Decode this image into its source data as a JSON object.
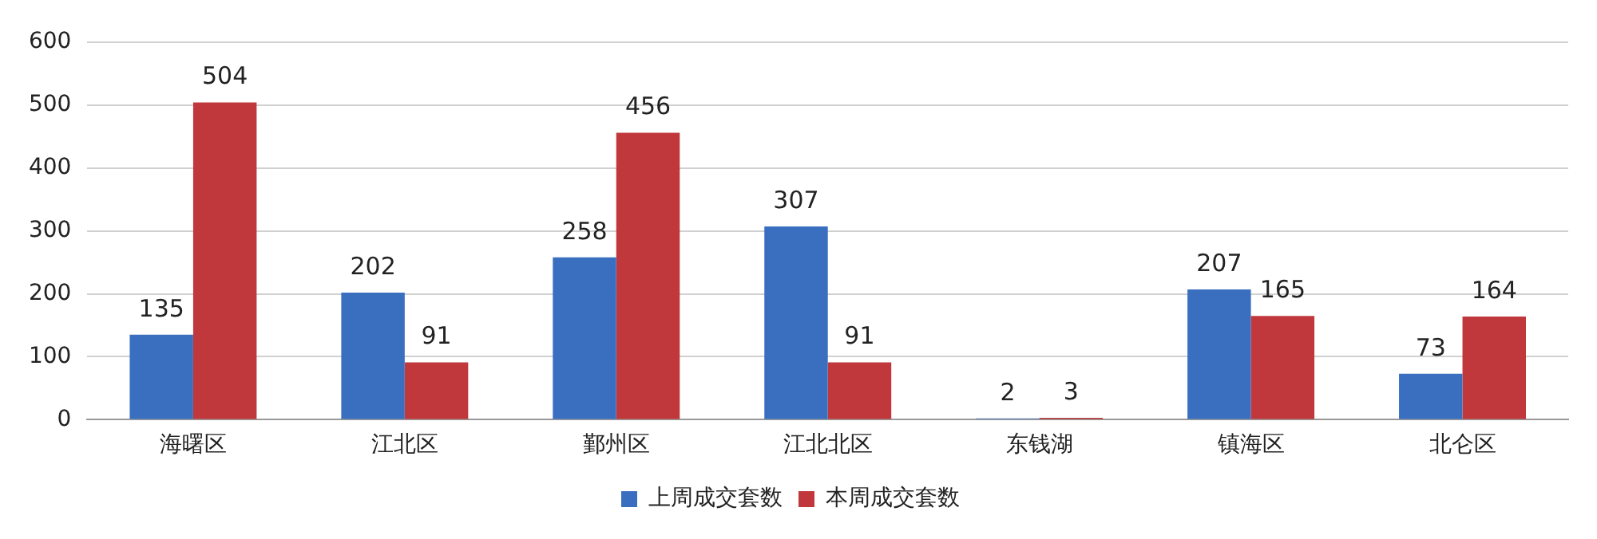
{
  "chart_data": {
    "type": "bar",
    "categories": [
      "海曙区",
      "江北区",
      "鄞州区",
      "江北北区",
      "东钱湖",
      "镇海区",
      "北仑区"
    ],
    "series": [
      {
        "name": "上周成交套数",
        "color": "#3a6fc0",
        "values": [
          135,
          202,
          258,
          307,
          2,
          207,
          73
        ]
      },
      {
        "name": "本周成交套数",
        "color": "#c0383b",
        "values": [
          504,
          91,
          456,
          91,
          3,
          165,
          164
        ]
      }
    ],
    "ylim": [
      0,
      600
    ],
    "yticks": [
      0,
      100,
      200,
      300,
      400,
      500,
      600
    ],
    "grid": "y",
    "legend": "bottom",
    "data_labels": true
  }
}
